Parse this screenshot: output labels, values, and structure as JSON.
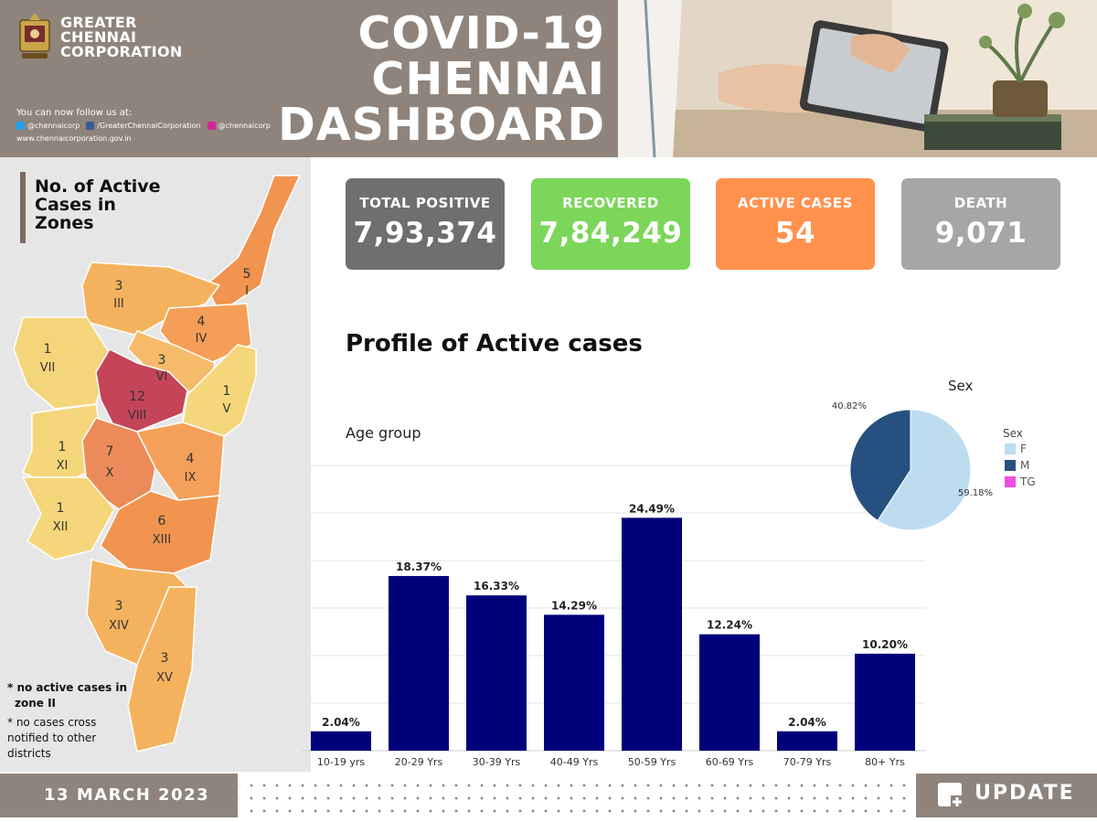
{
  "header": {
    "org_lines": [
      "GREATER",
      "CHENNAI",
      "CORPORATION"
    ],
    "title_lines": [
      "COVID-19",
      "CHENNAI",
      "DASHBOARD"
    ],
    "follow_label": "You can now follow us at:",
    "social": {
      "twitter": "@chennaicorp",
      "facebook": "/GreaterChennaiCorporation",
      "instagram": "@chennaicorp"
    },
    "website": "www.chennaicorporation.gov.in"
  },
  "map": {
    "title_lines": [
      "No. of Active",
      "Cases in",
      "Zones"
    ],
    "zones": [
      {
        "roman": "I",
        "count": "5"
      },
      {
        "roman": "III",
        "count": "3"
      },
      {
        "roman": "IV",
        "count": "4"
      },
      {
        "roman": "V",
        "count": "1"
      },
      {
        "roman": "VI",
        "count": "3"
      },
      {
        "roman": "VII",
        "count": "1"
      },
      {
        "roman": "VIII",
        "count": "12"
      },
      {
        "roman": "IX",
        "count": "4"
      },
      {
        "roman": "X",
        "count": "7"
      },
      {
        "roman": "XI",
        "count": "1"
      },
      {
        "roman": "XII",
        "count": "1"
      },
      {
        "roman": "XIII",
        "count": "6"
      },
      {
        "roman": "XIV",
        "count": "3"
      },
      {
        "roman": "XV",
        "count": "3"
      }
    ],
    "notes": [
      [
        "* no active cases in",
        "zone II"
      ],
      [
        "* no cases cross",
        "notified to other",
        "districts"
      ]
    ]
  },
  "cards": [
    {
      "label": "TOTAL POSITIVE",
      "value": "7,93,374",
      "color": "#6f6f6f"
    },
    {
      "label": "RECOVERED",
      "value": "7,84,249",
      "color": "#7bd65a"
    },
    {
      "label": "ACTIVE CASES",
      "value": "54",
      "color": "#ff914d"
    },
    {
      "label": "DEATH",
      "value": "9,071",
      "color": "#a6a6a6"
    }
  ],
  "profile_title": "Profile of Active cases",
  "age_group_label": "Age group",
  "sex_title": "Sex",
  "chart_data": [
    {
      "type": "bar",
      "title": "Age group",
      "categories": [
        "10-19 yrs",
        "20-29 Yrs",
        "30-39 Yrs",
        "40-49 Yrs",
        "50-59 Yrs",
        "60-69 Yrs",
        "70-79 Yrs",
        "80+ Yrs"
      ],
      "values": [
        2.04,
        18.37,
        16.33,
        14.29,
        24.49,
        12.24,
        2.04,
        10.2
      ],
      "labels": [
        "2.04%",
        "18.37%",
        "16.33%",
        "14.29%",
        "24.49%",
        "12.24%",
        "2.04%",
        "10.20%"
      ],
      "ylim": [
        0,
        30
      ],
      "grid": true,
      "color": "#00007a"
    },
    {
      "type": "pie",
      "title": "Sex",
      "legend_title": "Sex",
      "categories": [
        "F",
        "M",
        "TG"
      ],
      "values": [
        59.18,
        40.82,
        0
      ],
      "labels": [
        "59.18%",
        "40.82%",
        ""
      ],
      "colors": [
        "#bddcf0",
        "#25507f",
        "#ee4fe0"
      ]
    }
  ],
  "footer": {
    "date": "13 MARCH 2023",
    "update_label": "UPDATE"
  }
}
